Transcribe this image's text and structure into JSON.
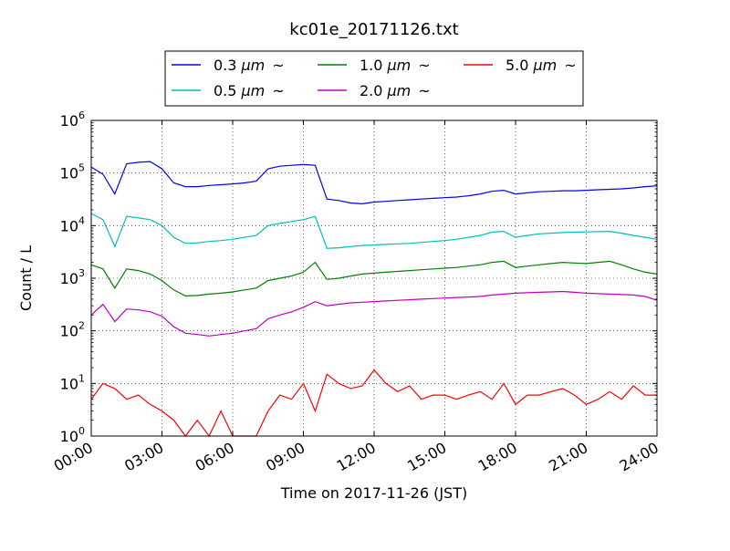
{
  "chart_data": {
    "type": "line",
    "title": "kc01e_20171126.txt",
    "xlabel": "Time on 2017-11-26 (JST)",
    "ylabel": "Count / L",
    "yscale": "log",
    "ylim": [
      1,
      1000000
    ],
    "xlim": [
      "00:00",
      "24:00"
    ],
    "x_ticks": [
      "00:00",
      "03:00",
      "06:00",
      "09:00",
      "12:00",
      "15:00",
      "18:00",
      "21:00",
      "24:00"
    ],
    "y_ticks": [
      {
        "base": "10",
        "exp": "0"
      },
      {
        "base": "10",
        "exp": "1"
      },
      {
        "base": "10",
        "exp": "2"
      },
      {
        "base": "10",
        "exp": "3"
      },
      {
        "base": "10",
        "exp": "4"
      },
      {
        "base": "10",
        "exp": "5"
      },
      {
        "base": "10",
        "exp": "6"
      }
    ],
    "grid": true,
    "legend_position": "top",
    "x_hours": [
      0,
      0.5,
      1,
      1.5,
      2,
      2.5,
      3,
      3.5,
      4,
      4.5,
      5,
      5.5,
      6,
      6.5,
      7,
      7.5,
      8,
      8.5,
      9,
      9.5,
      10,
      10.5,
      11,
      11.5,
      12,
      12.5,
      13,
      13.5,
      14,
      14.5,
      15,
      15.5,
      16,
      16.5,
      17,
      17.5,
      18,
      18.5,
      19,
      19.5,
      20,
      20.5,
      21,
      21.5,
      22,
      22.5,
      23,
      23.5,
      24
    ],
    "series": [
      {
        "name": "0.3",
        "unit": "μm",
        "suffix": "~",
        "color": "#0000ff",
        "values": [
          130000,
          95000,
          40000,
          150000,
          160000,
          165000,
          120000,
          65000,
          55000,
          55000,
          58000,
          60000,
          62000,
          65000,
          70000,
          120000,
          135000,
          140000,
          145000,
          140000,
          32000,
          30000,
          27000,
          26000,
          28000,
          29000,
          30000,
          31000,
          32000,
          33000,
          34000,
          35000,
          37000,
          40000,
          45000,
          47000,
          40000,
          42000,
          44000,
          45000,
          46000,
          46000,
          47000,
          48000,
          49000,
          50000,
          52000,
          55000,
          57000
        ]
      },
      {
        "name": "0.5",
        "unit": "μm",
        "suffix": "~",
        "color": "#00bfbf",
        "values": [
          17000,
          13000,
          4000,
          15000,
          14000,
          13000,
          10000,
          6000,
          4600,
          4700,
          5000,
          5200,
          5500,
          6000,
          6500,
          10000,
          11000,
          12000,
          13000,
          15000,
          3700,
          3800,
          4000,
          4200,
          4300,
          4400,
          4500,
          4600,
          4800,
          5000,
          5200,
          5500,
          6000,
          6500,
          7500,
          7800,
          6000,
          6500,
          7000,
          7200,
          7400,
          7500,
          7600,
          7700,
          7800,
          7200,
          6500,
          6000,
          5500
        ]
      },
      {
        "name": "1.0",
        "unit": "μm",
        "suffix": "~",
        "color": "#008000",
        "values": [
          1800,
          1500,
          650,
          1500,
          1400,
          1200,
          900,
          600,
          460,
          470,
          500,
          520,
          550,
          600,
          650,
          900,
          1000,
          1100,
          1300,
          2000,
          950,
          1000,
          1100,
          1200,
          1250,
          1300,
          1350,
          1400,
          1450,
          1500,
          1550,
          1600,
          1700,
          1800,
          2000,
          2100,
          1600,
          1700,
          1800,
          1900,
          2000,
          1950,
          1900,
          2000,
          2100,
          1800,
          1500,
          1300,
          1200
        ]
      },
      {
        "name": "2.0",
        "unit": "μm",
        "suffix": "~",
        "color": "#bf00bf",
        "values": [
          200,
          320,
          150,
          260,
          250,
          230,
          190,
          120,
          90,
          85,
          80,
          85,
          90,
          100,
          110,
          170,
          200,
          230,
          280,
          360,
          300,
          320,
          340,
          350,
          360,
          370,
          380,
          390,
          400,
          410,
          420,
          430,
          440,
          450,
          480,
          500,
          520,
          530,
          540,
          550,
          560,
          540,
          520,
          510,
          500,
          490,
          480,
          450,
          380
        ]
      },
      {
        "name": "5.0",
        "unit": "μm",
        "suffix": "~",
        "color": "#ff0000",
        "values": [
          5,
          10,
          8,
          5,
          6,
          4,
          3,
          2,
          1,
          2,
          1,
          3,
          1,
          1,
          1,
          3,
          6,
          5,
          10,
          3,
          15,
          10,
          8,
          9,
          18,
          10,
          7,
          9,
          5,
          6,
          6,
          5,
          6,
          7,
          5,
          10,
          4,
          6,
          6,
          7,
          8,
          6,
          4,
          5,
          7,
          5,
          9,
          6,
          6
        ]
      }
    ]
  }
}
